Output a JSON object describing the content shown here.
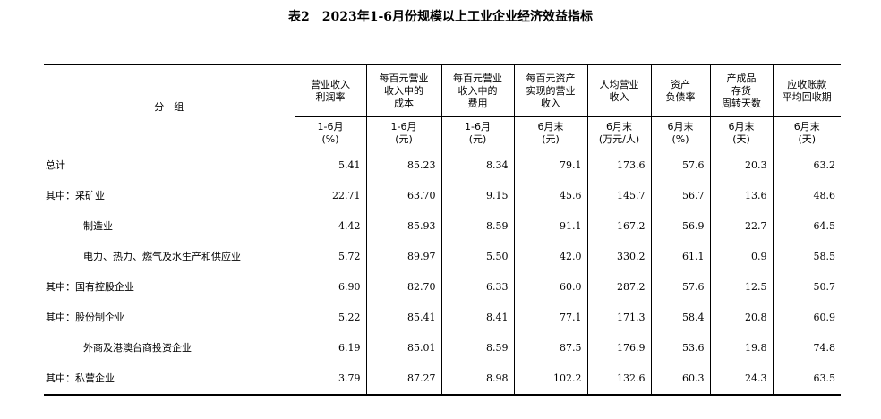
{
  "title": "表2　2023年1-6月份规模以上工业企业经济效益指标",
  "group_header": "分　组",
  "columns": [
    {
      "name": "营业收入\n利润率",
      "period": "1-6月\n(%)"
    },
    {
      "name": "每百元营业\n收入中的\n成本",
      "period": "1-6月\n(元)"
    },
    {
      "name": "每百元营业\n收入中的\n费用",
      "period": "1-6月\n(元)"
    },
    {
      "name": "每百元资产\n实现的营业\n收入",
      "period": "6月末\n(元)"
    },
    {
      "name": "人均营业\n收入",
      "period": "6月末\n(万元/人)"
    },
    {
      "name": "资产\n负债率",
      "period": "6月末\n(%)"
    },
    {
      "name": "产成品\n存货\n周转天数",
      "period": "6月末\n(天)"
    },
    {
      "name": "应收账款\n平均回收期",
      "period": "6月末\n(天)"
    }
  ],
  "rows": [
    {
      "label": "总计",
      "values": [
        "5.41",
        "85.23",
        "8.34",
        "79.1",
        "173.6",
        "57.6",
        "20.3",
        "63.2"
      ]
    },
    {
      "label": "其中：采矿业",
      "values": [
        "22.71",
        "63.70",
        "9.15",
        "45.6",
        "145.7",
        "56.7",
        "13.6",
        "48.6"
      ]
    },
    {
      "label": "制造业",
      "indent": true,
      "values": [
        "4.42",
        "85.93",
        "8.59",
        "91.1",
        "167.2",
        "56.9",
        "22.7",
        "64.5"
      ]
    },
    {
      "label": "电力、热力、燃气及水生产和供应业",
      "indent": true,
      "values": [
        "5.72",
        "89.97",
        "5.50",
        "42.0",
        "330.2",
        "61.1",
        "0.9",
        "58.5"
      ]
    },
    {
      "label": "其中：国有控股企业",
      "values": [
        "6.90",
        "82.70",
        "6.33",
        "60.0",
        "287.2",
        "57.6",
        "12.5",
        "50.7"
      ]
    },
    {
      "label": "其中：股份制企业",
      "values": [
        "5.22",
        "85.41",
        "8.41",
        "77.1",
        "171.3",
        "58.4",
        "20.8",
        "60.9"
      ]
    },
    {
      "label": "外商及港澳台商投资企业",
      "indent": true,
      "values": [
        "6.19",
        "85.01",
        "8.59",
        "87.5",
        "176.9",
        "53.6",
        "19.8",
        "74.8"
      ]
    },
    {
      "label": "其中：私营企业",
      "values": [
        "3.79",
        "87.27",
        "8.98",
        "102.2",
        "132.6",
        "60.3",
        "24.3",
        "63.5"
      ]
    }
  ]
}
